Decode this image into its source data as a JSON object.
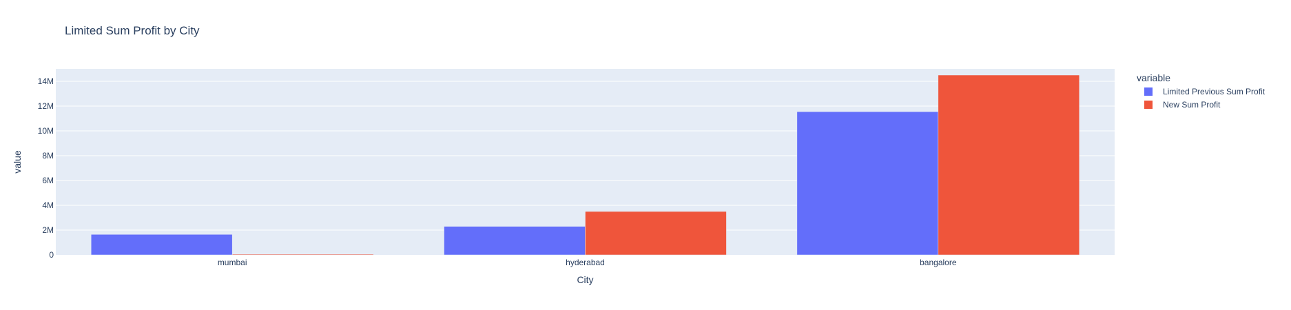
{
  "chart_data": {
    "type": "bar",
    "title": "Limited Sum Profit by City",
    "xlabel": "City",
    "ylabel": "value",
    "categories": [
      "mumbai",
      "hyderabad",
      "bangalore"
    ],
    "series": [
      {
        "name": "Limited Previous Sum Profit",
        "color": "#636efa",
        "values": [
          1650000,
          2300000,
          11550000
        ]
      },
      {
        "name": "New Sum Profit",
        "color": "#ef553b",
        "values": [
          50000,
          3500000,
          14500000
        ]
      }
    ],
    "ylim": [
      0,
      15000000
    ],
    "yticks": [
      {
        "value": 0,
        "label": "0"
      },
      {
        "value": 2000000,
        "label": "2M"
      },
      {
        "value": 4000000,
        "label": "4M"
      },
      {
        "value": 6000000,
        "label": "6M"
      },
      {
        "value": 8000000,
        "label": "8M"
      },
      {
        "value": 10000000,
        "label": "10M"
      },
      {
        "value": 12000000,
        "label": "12M"
      },
      {
        "value": 14000000,
        "label": "14M"
      }
    ],
    "grid": true,
    "legend": {
      "title": "variable",
      "position": "top-right"
    },
    "plot_background": "#e5ecf6",
    "gridline_color": "#ffffff"
  }
}
